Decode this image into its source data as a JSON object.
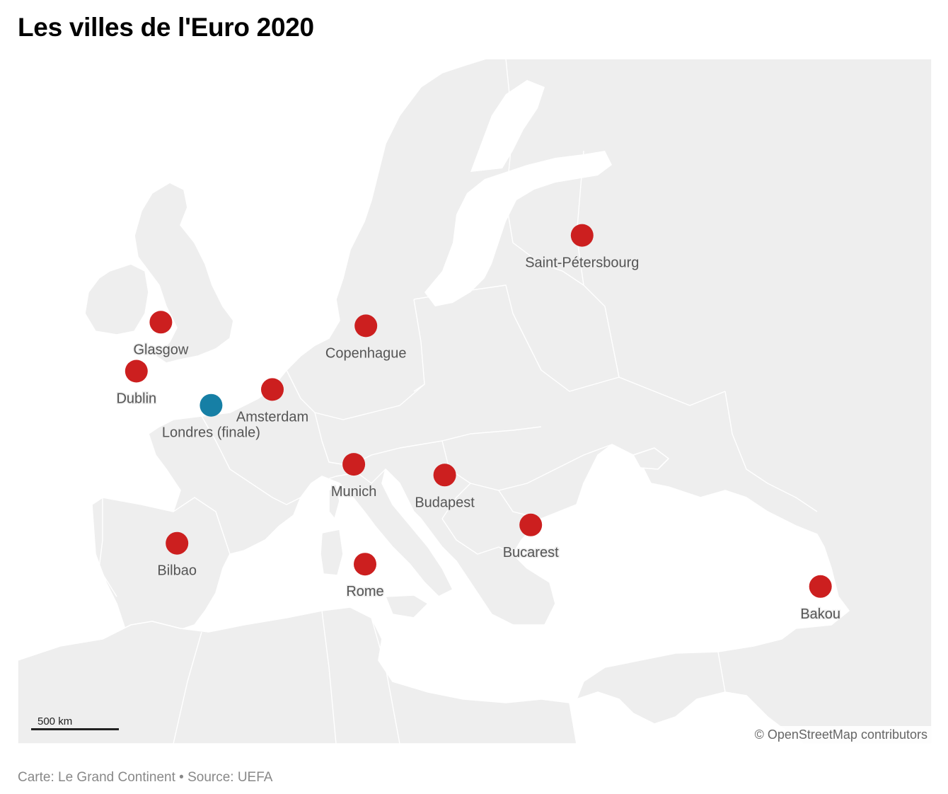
{
  "title": "Les villes de l'Euro 2020",
  "scale_label": "500 km",
  "attribution": "© OpenStreetMap contributors",
  "footer": {
    "credit": "Carte: Le Grand Continent",
    "separator": "•",
    "source": "Source: UEFA"
  },
  "colors": {
    "host_city": "#cc1f1f",
    "final_city": "#167fa5",
    "land": "#eeeeee",
    "sea": "#ffffff"
  },
  "cities": [
    {
      "name": "Saint-Pétersbourg",
      "lat": 59.94,
      "lon": 30.31,
      "kind": "host"
    },
    {
      "name": "Glasgow",
      "lat": 55.86,
      "lon": -4.25,
      "kind": "host"
    },
    {
      "name": "Copenhague",
      "lat": 55.68,
      "lon": 12.57,
      "kind": "host"
    },
    {
      "name": "Dublin",
      "lat": 53.35,
      "lon": -6.26,
      "kind": "host"
    },
    {
      "name": "Amsterdam",
      "lat": 52.37,
      "lon": 4.9,
      "kind": "host"
    },
    {
      "name": "Londres (finale)",
      "lat": 51.51,
      "lon": -0.13,
      "kind": "final"
    },
    {
      "name": "Munich",
      "lat": 48.14,
      "lon": 11.58,
      "kind": "host"
    },
    {
      "name": "Budapest",
      "lat": 47.5,
      "lon": 19.04,
      "kind": "host"
    },
    {
      "name": "Bucarest",
      "lat": 44.43,
      "lon": 26.1,
      "kind": "host"
    },
    {
      "name": "Bilbao",
      "lat": 43.26,
      "lon": -2.93,
      "kind": "host"
    },
    {
      "name": "Rome",
      "lat": 41.9,
      "lon": 12.5,
      "kind": "host"
    },
    {
      "name": "Bakou",
      "lat": 40.41,
      "lon": 49.87,
      "kind": "host"
    }
  ]
}
